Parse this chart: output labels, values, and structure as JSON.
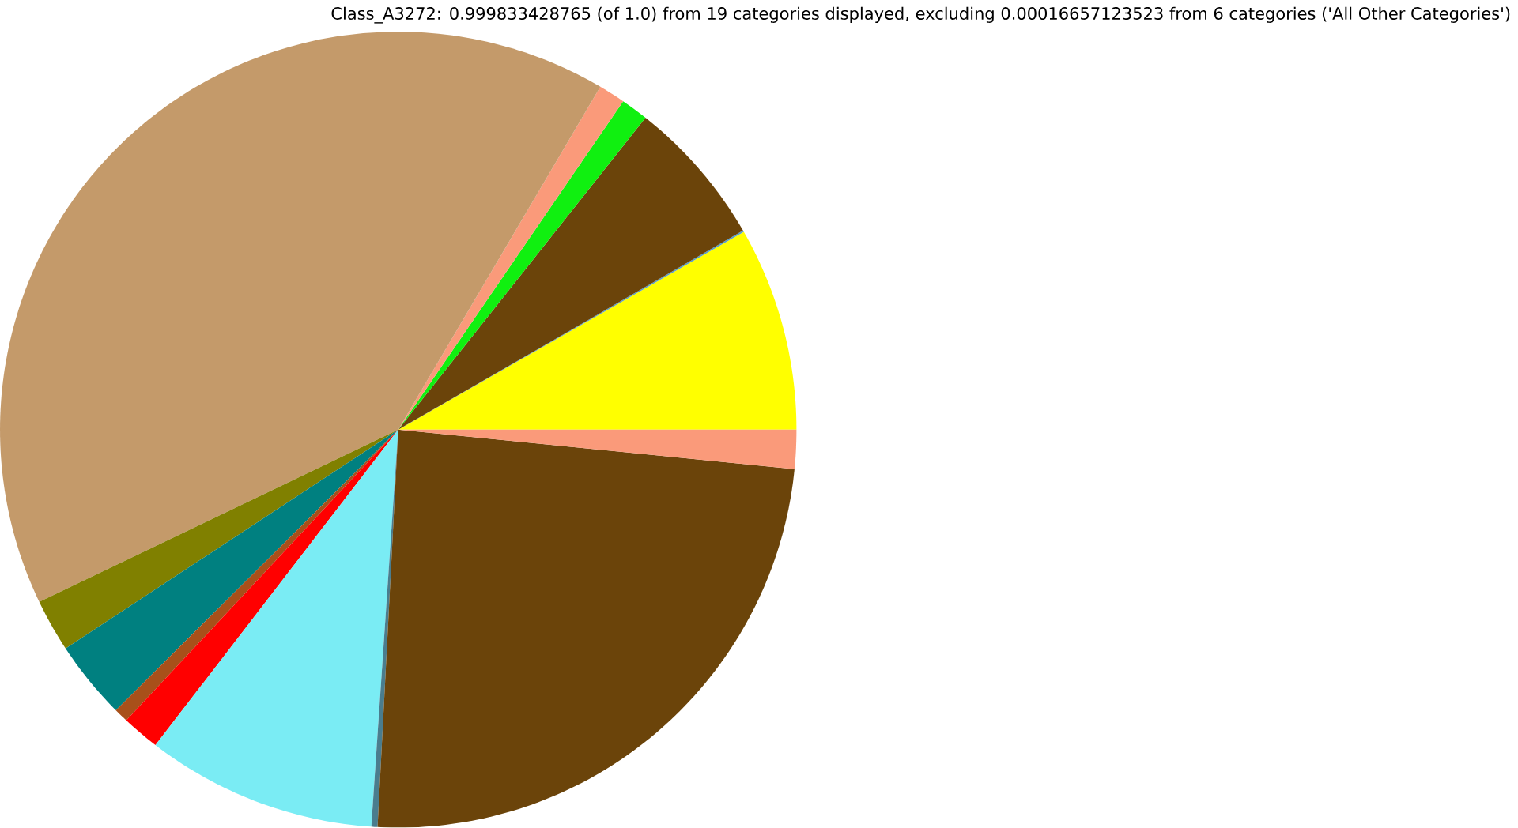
{
  "chart_data": {
    "type": "pie",
    "title": "Class_A3272: 0.999833428765 (of 1.0) from 19 categories displayed, excluding 0.00016657123523 from 6 categories ('All Other Categories')",
    "categories": [
      null,
      null,
      null,
      null,
      null,
      null,
      null,
      null,
      null,
      null,
      null,
      null,
      null,
      null
    ],
    "values": [
      8.28,
      0.06,
      6.0,
      1.11,
      1.08,
      40.6,
      2.14,
      3.19,
      0.58,
      1.53,
      9.36,
      0.25,
      24.25,
      1.58
    ],
    "colors": [
      "#ffff00",
      "#5a9ec8",
      "#6b440a",
      "#10f010",
      "#fa9a7a",
      "#c49a6a",
      "#808000",
      "#008080",
      "#a8501a",
      "#ff0000",
      "#7aecf4",
      "#4a7d8e",
      "#6b440a",
      "#fa9a7a"
    ]
  }
}
